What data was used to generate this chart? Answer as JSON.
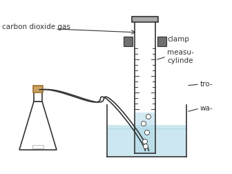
{
  "bg_color": "#ffffff",
  "water_color": "#add8e6",
  "water_alpha": 0.5,
  "flask_color": "#ffffff",
  "flask_stroke": "#333333",
  "clamp_color": "#666666",
  "stopper_color": "#c8a060",
  "label_color": "#333333",
  "label_fontsize": 7.5,
  "labels": {
    "co2": "carbon dioxide gas",
    "clamp": "clamp",
    "measuring": "measu-\ncylinde",
    "trough": "tro-",
    "water": "wa-"
  },
  "title_fontsize": 9
}
